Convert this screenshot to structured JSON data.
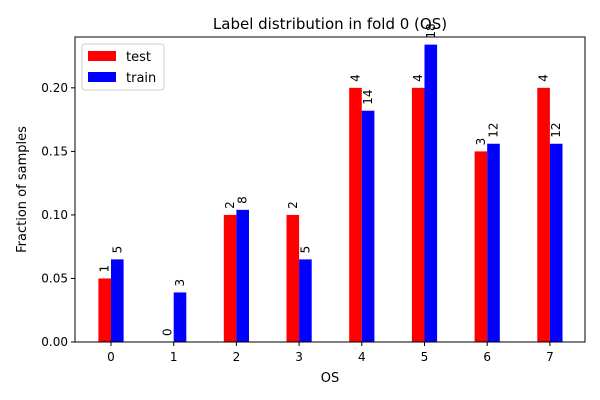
{
  "chart_data": {
    "type": "bar",
    "title": "Label distribution in fold 0 (OS)",
    "xlabel": "OS",
    "ylabel": "Fraction of samples",
    "categories": [
      "0",
      "1",
      "2",
      "3",
      "4",
      "5",
      "6",
      "7"
    ],
    "ylim": [
      0,
      0.24
    ],
    "yticks": [
      "0.00",
      "0.05",
      "0.10",
      "0.15",
      "0.20"
    ],
    "grid": false,
    "legend_position": "top-left",
    "series": [
      {
        "name": "test",
        "color": "#ff0000",
        "values": [
          0.05,
          0.0,
          0.1,
          0.1,
          0.2,
          0.2,
          0.15,
          0.2
        ],
        "labels": [
          "1",
          "0",
          "2",
          "2",
          "4",
          "4",
          "3",
          "4"
        ]
      },
      {
        "name": "train",
        "color": "#0000ff",
        "values": [
          0.065,
          0.039,
          0.104,
          0.065,
          0.182,
          0.234,
          0.156,
          0.156
        ],
        "labels": [
          "5",
          "3",
          "8",
          "5",
          "14",
          "18",
          "12",
          "12"
        ]
      }
    ]
  }
}
